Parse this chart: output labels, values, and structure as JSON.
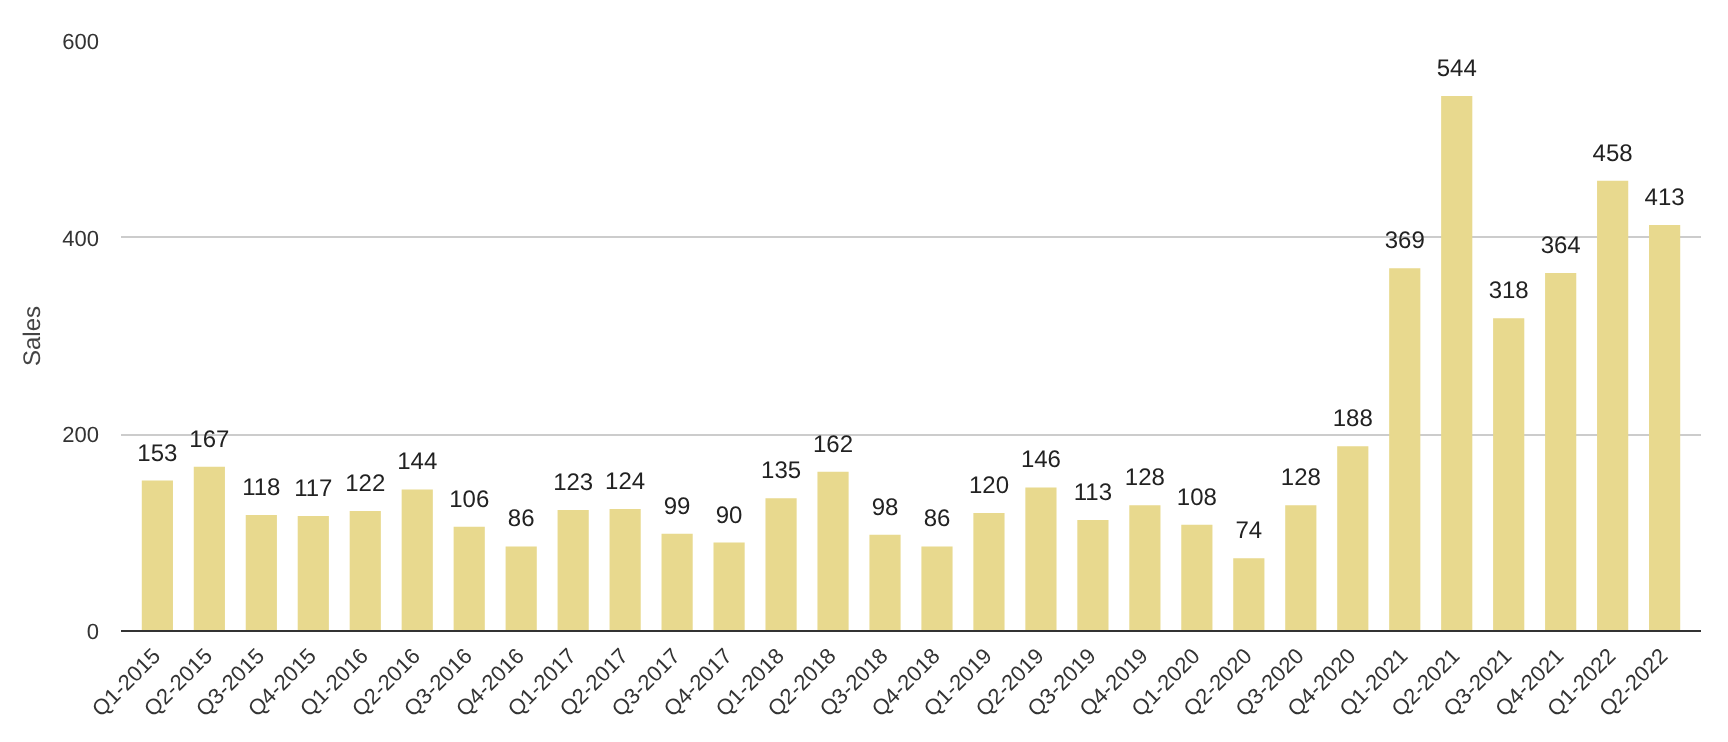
{
  "chart_data": {
    "type": "bar",
    "ylabel": "Sales",
    "categories": [
      "Q1-2015",
      "Q2-2015",
      "Q3-2015",
      "Q4-2015",
      "Q1-2016",
      "Q2-2016",
      "Q3-2016",
      "Q4-2016",
      "Q1-2017",
      "Q2-2017",
      "Q3-2017",
      "Q4-2017",
      "Q1-2018",
      "Q2-2018",
      "Q3-2018",
      "Q4-2018",
      "Q1-2019",
      "Q2-2019",
      "Q3-2019",
      "Q4-2019",
      "Q1-2020",
      "Q2-2020",
      "Q3-2020",
      "Q4-2020",
      "Q1-2021",
      "Q2-2021",
      "Q3-2021",
      "Q4-2021",
      "Q1-2022",
      "Q2-2022"
    ],
    "values": [
      153,
      167,
      118,
      117,
      122,
      144,
      106,
      86,
      123,
      124,
      99,
      90,
      135,
      162,
      98,
      86,
      120,
      146,
      113,
      128,
      108,
      74,
      128,
      188,
      369,
      544,
      318,
      364,
      458,
      413
    ],
    "color": "#e8d98e",
    "ylim": [
      0,
      600
    ],
    "yticks": [
      0,
      200,
      400,
      600
    ],
    "grid": "y",
    "data_labels": true
  }
}
